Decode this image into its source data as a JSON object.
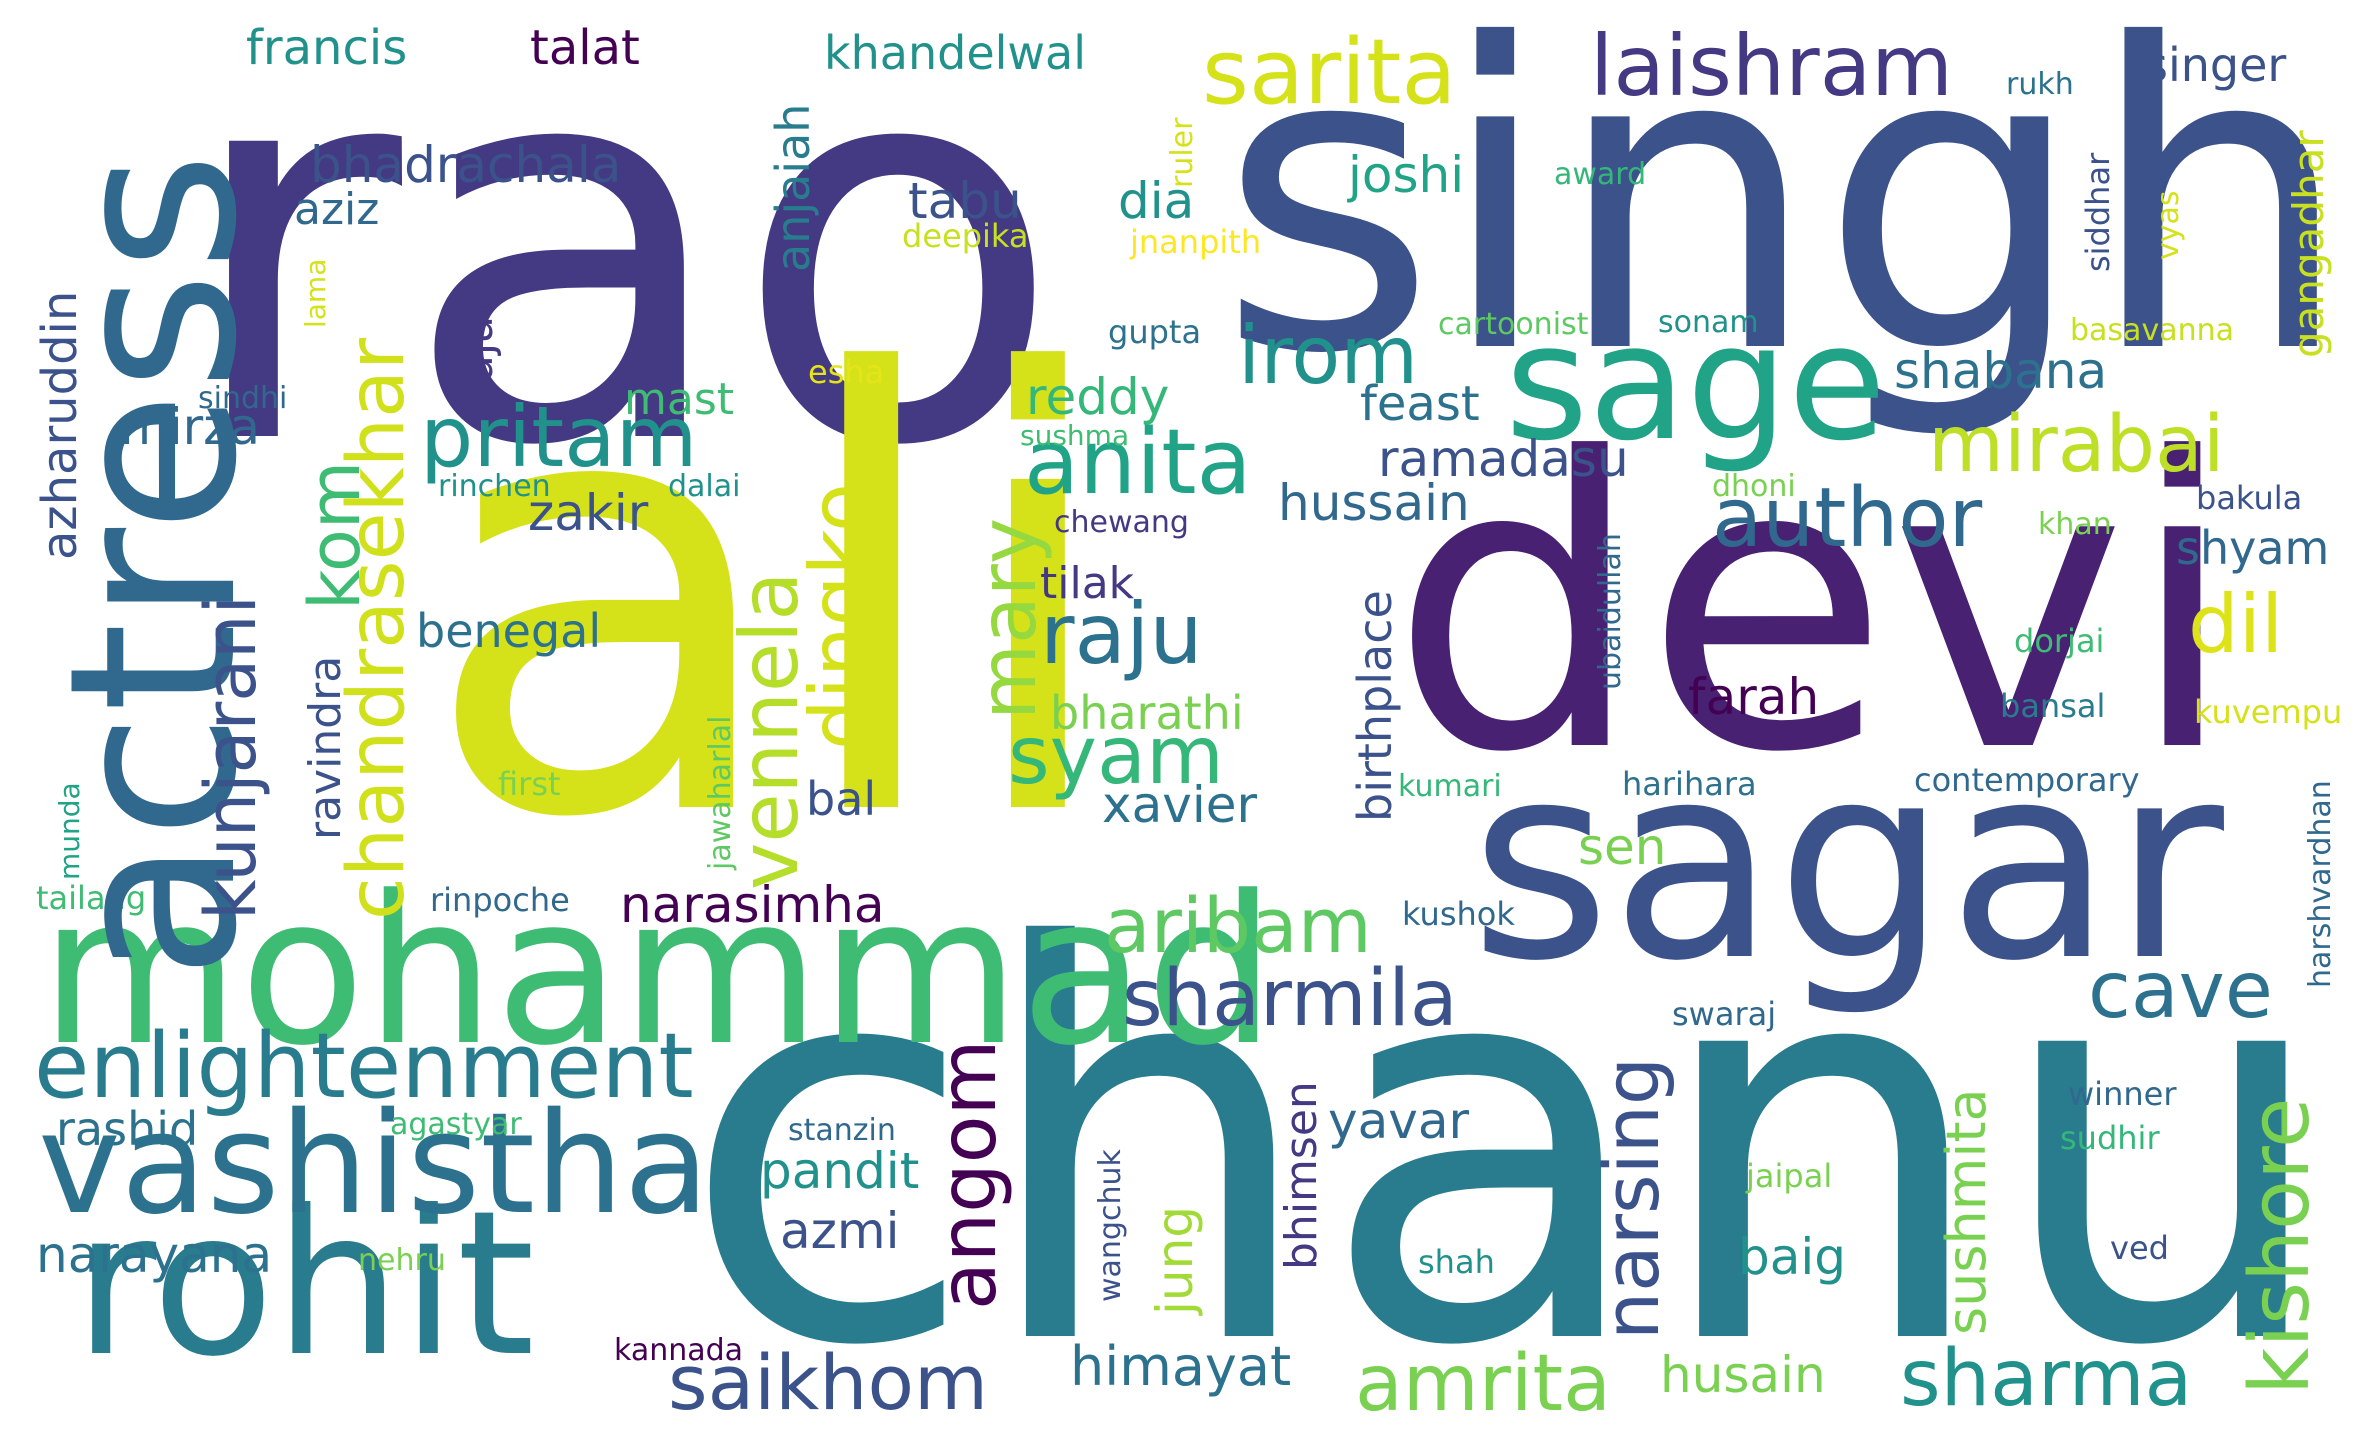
{
  "palette": {
    "purple_dark": "#440154",
    "indigo": "#443983",
    "blue": "#3b528b",
    "slate_blue": "#31688e",
    "teal": "#287c8e",
    "teal_green": "#21918c",
    "green": "#20a386",
    "mint": "#35b779",
    "lime": "#7ad151",
    "yellow_green": "#bddf26",
    "yellow": "#dde318",
    "bright_yellow": "#fde725",
    "background": "#ffffff"
  },
  "words": [
    {
      "text": "rao",
      "color": "#443983"
    },
    {
      "text": "singh",
      "color": "#3b528b"
    },
    {
      "text": "ali",
      "color": "#d5e21a"
    },
    {
      "text": "devi",
      "color": "#482173"
    },
    {
      "text": "chanu",
      "color": "#287c8e"
    },
    {
      "text": "sagar",
      "color": "#3b528b"
    },
    {
      "text": "actress",
      "color": "#31688e"
    },
    {
      "text": "mohammad",
      "color": "#3fbc73"
    },
    {
      "text": "rohit",
      "color": "#287c8e"
    },
    {
      "text": "vashistha",
      "color": "#2c728e"
    },
    {
      "text": "sage",
      "color": "#20a386"
    },
    {
      "text": "enlightenment",
      "color": "#287c8e"
    },
    {
      "text": "sarita",
      "color": "#d5e21a"
    },
    {
      "text": "laishram",
      "color": "#443983"
    },
    {
      "text": "irom",
      "color": "#21918c"
    },
    {
      "text": "anita",
      "color": "#20a386"
    },
    {
      "text": "pritam",
      "color": "#21918c"
    },
    {
      "text": "author",
      "color": "#31688e"
    },
    {
      "text": "mirabai",
      "color": "#bddf26"
    },
    {
      "text": "kishore",
      "color": "#7ad151"
    },
    {
      "text": "sharma",
      "color": "#21918c"
    },
    {
      "text": "amrita",
      "color": "#7ad151"
    },
    {
      "text": "saikhom",
      "color": "#3b528b"
    },
    {
      "text": "sharmila",
      "color": "#3b528b"
    },
    {
      "text": "aribam",
      "color": "#5ec962"
    },
    {
      "text": "cave",
      "color": "#2c728e"
    },
    {
      "text": "syam",
      "color": "#35b779"
    },
    {
      "text": "raju",
      "color": "#2c728e"
    },
    {
      "text": "dil",
      "color": "#dde318"
    },
    {
      "text": "chandrasekhar",
      "color": "#d0e11c"
    },
    {
      "text": "kunjarani",
      "color": "#3b528b"
    },
    {
      "text": "vennela",
      "color": "#b5de2b"
    },
    {
      "text": "dingko",
      "color": "#d5e21a"
    },
    {
      "text": "mary",
      "color": "#95d840"
    },
    {
      "text": "angom",
      "color": "#440154"
    },
    {
      "text": "narsing",
      "color": "#3b528b"
    },
    {
      "text": "kom",
      "color": "#3fbc73"
    },
    {
      "text": "narayana",
      "color": "#2c728e"
    },
    {
      "text": "rashid",
      "color": "#2c728e"
    },
    {
      "text": "himayat",
      "color": "#2c728e"
    },
    {
      "text": "husain",
      "color": "#7ad151"
    },
    {
      "text": "pandit",
      "color": "#21918c"
    },
    {
      "text": "azmi",
      "color": "#3b528b"
    },
    {
      "text": "yavar",
      "color": "#31688e"
    },
    {
      "text": "jung",
      "color": "#a2da37"
    },
    {
      "text": "sushmita",
      "color": "#7ad151"
    },
    {
      "text": "baig",
      "color": "#21918c"
    },
    {
      "text": "bhimsen",
      "color": "#443983"
    },
    {
      "text": "narasimha",
      "color": "#440154"
    },
    {
      "text": "sen",
      "color": "#7ad151"
    },
    {
      "text": "farah",
      "color": "#440154"
    },
    {
      "text": "xavier",
      "color": "#2c728e"
    },
    {
      "text": "bharathi",
      "color": "#7ad151"
    },
    {
      "text": "bal",
      "color": "#3b528b"
    },
    {
      "text": "tilak",
      "color": "#443983"
    },
    {
      "text": "hussain",
      "color": "#31688e"
    },
    {
      "text": "zakir",
      "color": "#3b528b"
    },
    {
      "text": "ramadasu",
      "color": "#3b528b"
    },
    {
      "text": "feast",
      "color": "#2c728e"
    },
    {
      "text": "reddy",
      "color": "#35b779"
    },
    {
      "text": "shabana",
      "color": "#2c728e"
    },
    {
      "text": "shyam",
      "color": "#31688e"
    },
    {
      "text": "mirza",
      "color": "#31688e"
    },
    {
      "text": "mast",
      "color": "#3fbc73"
    },
    {
      "text": "benegal",
      "color": "#2c728e"
    },
    {
      "text": "bhadrachala",
      "color": "#3b528b"
    },
    {
      "text": "aziz",
      "color": "#31688e"
    },
    {
      "text": "tabu",
      "color": "#3b528b"
    },
    {
      "text": "dia",
      "color": "#21918c"
    },
    {
      "text": "joshi",
      "color": "#20a386"
    },
    {
      "text": "francis",
      "color": "#21918c"
    },
    {
      "text": "talat",
      "color": "#440154"
    },
    {
      "text": "khandelwal",
      "color": "#21918c"
    },
    {
      "text": "singer",
      "color": "#3b528b"
    },
    {
      "text": "rukh",
      "color": "#2c728e"
    },
    {
      "text": "award",
      "color": "#35b779"
    },
    {
      "text": "deepika",
      "color": "#c8e020"
    },
    {
      "text": "jnanpith",
      "color": "#fde725"
    },
    {
      "text": "cartoonist",
      "color": "#5ec962"
    },
    {
      "text": "sonam",
      "color": "#21918c"
    },
    {
      "text": "basavanna",
      "color": "#c8e020"
    },
    {
      "text": "gupta",
      "color": "#2c728e"
    },
    {
      "text": "esha",
      "color": "#e5e419"
    },
    {
      "text": "sindhi",
      "color": "#31688e"
    },
    {
      "text": "sushma",
      "color": "#3fbc73"
    },
    {
      "text": "rinchen",
      "color": "#21918c"
    },
    {
      "text": "dalai",
      "color": "#21918c"
    },
    {
      "text": "dhoni",
      "color": "#7ad151"
    },
    {
      "text": "bakula",
      "color": "#3b528b"
    },
    {
      "text": "khan",
      "color": "#7ad151"
    },
    {
      "text": "chewang",
      "color": "#443983"
    },
    {
      "text": "dorjai",
      "color": "#3fbc73"
    },
    {
      "text": "bansal",
      "color": "#287c8e"
    },
    {
      "text": "kuvempu",
      "color": "#d5e21a"
    },
    {
      "text": "contemporary",
      "color": "#31688e"
    },
    {
      "text": "harihara",
      "color": "#2c728e"
    },
    {
      "text": "kumari",
      "color": "#35b779"
    },
    {
      "text": "first",
      "color": "#7ad151"
    },
    {
      "text": "tailang",
      "color": "#3fbc73"
    },
    {
      "text": "rinpoche",
      "color": "#31688e"
    },
    {
      "text": "kushok",
      "color": "#31688e"
    },
    {
      "text": "swaraj",
      "color": "#31688e"
    },
    {
      "text": "agastyar",
      "color": "#3fbc73"
    },
    {
      "text": "stanzin",
      "color": "#31688e"
    },
    {
      "text": "winner",
      "color": "#31688e"
    },
    {
      "text": "sudhir",
      "color": "#35b779"
    },
    {
      "text": "jaipal",
      "color": "#7ad151"
    },
    {
      "text": "nehru",
      "color": "#7ad151"
    },
    {
      "text": "shah",
      "color": "#21918c"
    },
    {
      "text": "ved",
      "color": "#3b528b"
    },
    {
      "text": "kannada",
      "color": "#440154"
    },
    {
      "text": "gajam",
      "color": "#443983"
    },
    {
      "text": "anjaiah",
      "color": "#287c8e"
    },
    {
      "text": "azharuddin",
      "color": "#3b528b"
    },
    {
      "text": "ravindra",
      "color": "#3b528b"
    },
    {
      "text": "birthplace",
      "color": "#3b528b"
    },
    {
      "text": "gangadhar",
      "color": "#c8e020"
    },
    {
      "text": "ruler",
      "color": "#d5e21a"
    },
    {
      "text": "siddhar",
      "color": "#3b528b"
    },
    {
      "text": "vyas",
      "color": "#d5e21a"
    },
    {
      "text": "lama",
      "color": "#d5e21a"
    },
    {
      "text": "ubaidullah",
      "color": "#31688e"
    },
    {
      "text": "jawaharlal",
      "color": "#5ec962"
    },
    {
      "text": "munda",
      "color": "#20a386"
    },
    {
      "text": "wangchuk",
      "color": "#3b528b"
    },
    {
      "text": "harshvardhan",
      "color": "#31688e"
    }
  ]
}
